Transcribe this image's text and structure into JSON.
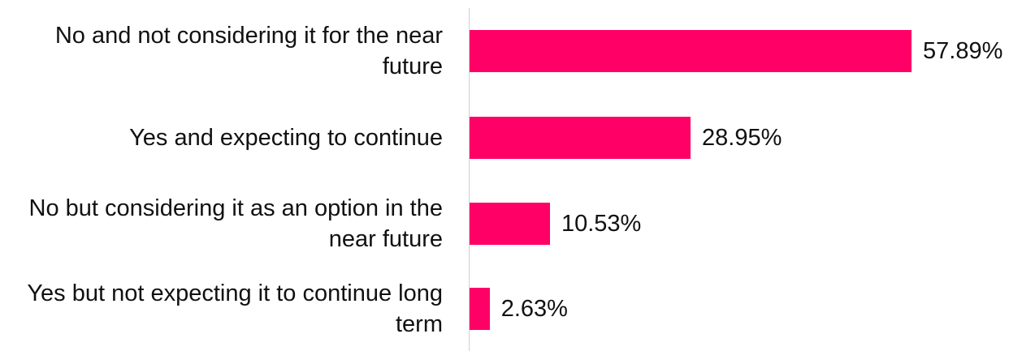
{
  "chart_data": {
    "type": "barh",
    "categories": [
      "No and not considering it for the near future",
      "Yes and expecting to continue",
      "No but considering it as an option in the near future",
      "Yes but not expecting it to continue long term"
    ],
    "values": [
      57.89,
      28.95,
      10.53,
      2.63
    ],
    "value_labels": [
      "57.89%",
      "28.95%",
      "10.53%",
      "2.63%"
    ],
    "color": "#ff0066"
  }
}
